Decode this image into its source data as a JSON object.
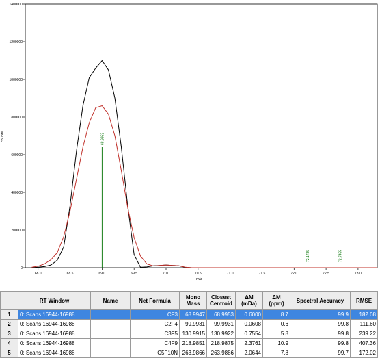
{
  "chart_data": {
    "type": "line",
    "xlabel": "m/z",
    "ylabel": "counts",
    "xlim": [
      67.8,
      73.3
    ],
    "ylim": [
      0,
      1400000
    ],
    "x_ticks": [
      "68.0",
      "68.5",
      "69.0",
      "69.5",
      "70.0",
      "70.5",
      "71.0",
      "71.5",
      "72.0",
      "72.5",
      "73.0"
    ],
    "y_ticks": [
      "0",
      "200000",
      "400000",
      "600000",
      "800000",
      "1000000",
      "1200000",
      "1400000"
    ],
    "series": [
      {
        "color": "#000000",
        "x": [
          67.9,
          68.0,
          68.1,
          68.2,
          68.3,
          68.4,
          68.5,
          68.6,
          68.7,
          68.8,
          68.9,
          69.0,
          69.1,
          69.2,
          69.3,
          69.4,
          69.5,
          69.6,
          69.7,
          69.8,
          69.9,
          70.0,
          70.1,
          70.2,
          70.3,
          70.4,
          70.6,
          71.0,
          72.0,
          73.3
        ],
        "y": [
          0,
          3000,
          6000,
          14000,
          40000,
          110000,
          330000,
          620000,
          860000,
          1010000,
          1060000,
          1100000,
          1050000,
          900000,
          640000,
          330000,
          70000,
          2000,
          4000,
          10000,
          12000,
          14000,
          12000,
          10000,
          2000,
          0,
          0,
          0,
          0,
          0
        ]
      },
      {
        "color": "#c0302a",
        "x": [
          67.9,
          68.0,
          68.1,
          68.2,
          68.3,
          68.4,
          68.5,
          68.6,
          68.7,
          68.8,
          68.9,
          69.0,
          69.1,
          69.2,
          69.3,
          69.4,
          69.5,
          69.6,
          69.7,
          69.8,
          69.9,
          70.0,
          70.1,
          70.2,
          70.3,
          70.4,
          70.6,
          71.0,
          72.0,
          73.3
        ],
        "y": [
          2000,
          8000,
          20000,
          42000,
          80000,
          165000,
          300000,
          470000,
          640000,
          770000,
          850000,
          860000,
          815000,
          700000,
          515000,
          320000,
          160000,
          62000,
          20000,
          9000,
          12000,
          14000,
          12000,
          10000,
          3000,
          0,
          0,
          0,
          0,
          0
        ]
      }
    ],
    "sticks": [
      {
        "x": 69.0,
        "y": 640000,
        "label": "68.9953",
        "color": "#007000"
      },
      {
        "x": 72.21,
        "y": 0,
        "label": "72.1785",
        "color": "#007000"
      },
      {
        "x": 72.72,
        "y": 0,
        "label": "72.7455",
        "color": "#007000"
      }
    ]
  },
  "table": {
    "headers": [
      "RT Window",
      "Name",
      "Net Formula",
      "Mono Mass",
      "Closest Centroid",
      "ΔM (mDa)",
      "ΔM (ppm)",
      "Spectral Accuracy",
      "RMSE"
    ],
    "rows": [
      {
        "num": "1",
        "rt": "0:  Scans  16944-16988",
        "name": "",
        "formula": "CF3",
        "mono": "68.9947",
        "closest": "68.9953",
        "dm_mda": "0.6000",
        "dm_ppm": "8.7",
        "spec": "99.9",
        "rmse": "182.08",
        "selected": true
      },
      {
        "num": "2",
        "rt": "0:  Scans  16944-16988",
        "name": "",
        "formula": "C2F4",
        "mono": "99.9931",
        "closest": "99.9931",
        "dm_mda": "0.0608",
        "dm_ppm": "0.6",
        "spec": "99.8",
        "rmse": "111.60",
        "selected": false
      },
      {
        "num": "3",
        "rt": "0:  Scans  16944-16988",
        "name": "",
        "formula": "C3F5",
        "mono": "130.9915",
        "closest": "130.9922",
        "dm_mda": "0.7554",
        "dm_ppm": "5.8",
        "spec": "99.8",
        "rmse": "239.22",
        "selected": false
      },
      {
        "num": "4",
        "rt": "0:  Scans  16944-16988",
        "name": "",
        "formula": "C4F9",
        "mono": "218.9851",
        "closest": "218.9875",
        "dm_mda": "2.3761",
        "dm_ppm": "10.9",
        "spec": "99.8",
        "rmse": "407.36",
        "selected": false
      },
      {
        "num": "5",
        "rt": "0:  Scans  16944-16988",
        "name": "",
        "formula": "C5F10N",
        "mono": "263.9866",
        "closest": "263.9886",
        "dm_mda": "2.0644",
        "dm_ppm": "7.8",
        "spec": "99.7",
        "rmse": "172.02",
        "selected": false
      }
    ]
  }
}
